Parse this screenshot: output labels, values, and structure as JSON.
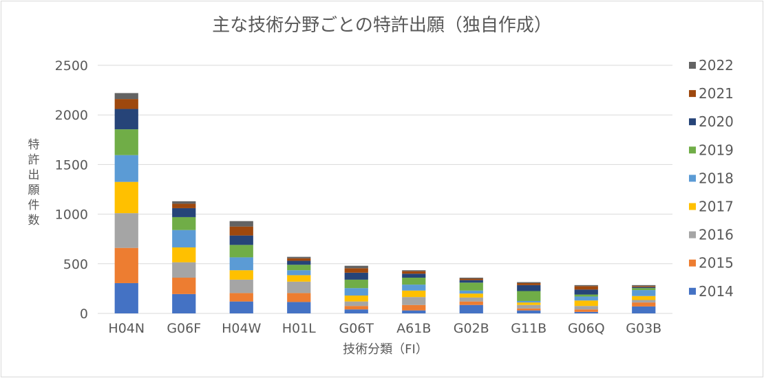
{
  "chart_data": {
    "type": "bar",
    "stacked": true,
    "title": "主な技術分野ごとの特許出願（独自作成）",
    "xlabel": "技術分類（FI）",
    "ylabel": "特許出願件数",
    "ylim": [
      0,
      2500
    ],
    "yticks": [
      0,
      500,
      1000,
      1500,
      2000,
      2500
    ],
    "grid": true,
    "legend_position": "right",
    "categories": [
      "H04N",
      "G06F",
      "H04W",
      "H01L",
      "G06T",
      "A61B",
      "G02B",
      "G11B",
      "G06Q",
      "G03B"
    ],
    "series": [
      {
        "name": "2014",
        "color": "#4472c4",
        "values": [
          305,
          195,
          120,
          115,
          40,
          30,
          85,
          30,
          15,
          70
        ]
      },
      {
        "name": "2015",
        "color": "#ed7d31",
        "values": [
          355,
          165,
          85,
          90,
          35,
          55,
          35,
          20,
          25,
          40
        ]
      },
      {
        "name": "2016",
        "color": "#a5a5a5",
        "values": [
          350,
          155,
          135,
          115,
          45,
          80,
          40,
          35,
          35,
          25
        ]
      },
      {
        "name": "2017",
        "color": "#ffc000",
        "values": [
          315,
          150,
          95,
          65,
          60,
          65,
          40,
          25,
          55,
          40
        ]
      },
      {
        "name": "2018",
        "color": "#5b9bd5",
        "values": [
          270,
          175,
          130,
          50,
          75,
          60,
          30,
          15,
          40,
          60
        ]
      },
      {
        "name": "2019",
        "color": "#70ad47",
        "values": [
          260,
          130,
          125,
          55,
          85,
          70,
          80,
          100,
          20,
          20
        ]
      },
      {
        "name": "2020",
        "color": "#264478",
        "values": [
          205,
          90,
          95,
          40,
          70,
          40,
          25,
          60,
          50,
          10
        ]
      },
      {
        "name": "2021",
        "color": "#9e480e",
        "values": [
          100,
          45,
          90,
          25,
          45,
          25,
          15,
          20,
          35,
          10
        ]
      },
      {
        "name": "2022",
        "color": "#636363",
        "values": [
          60,
          25,
          55,
          15,
          25,
          10,
          10,
          10,
          10,
          10
        ]
      }
    ]
  }
}
